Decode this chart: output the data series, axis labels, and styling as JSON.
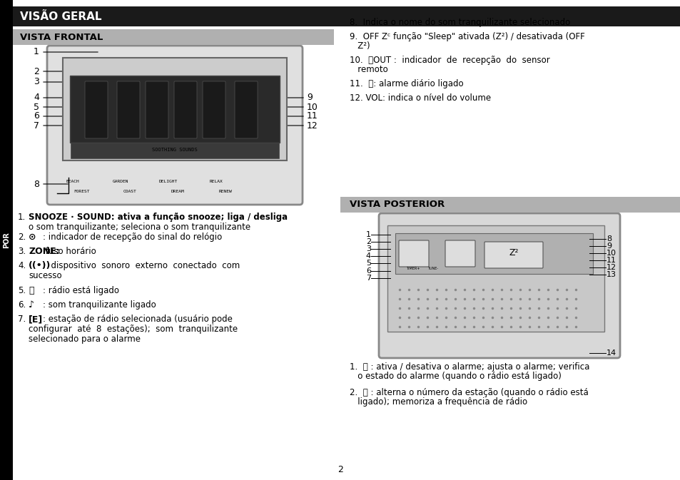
{
  "page_bg": "#ffffff",
  "left_tab_bg": "#000000",
  "left_tab_text": "POR",
  "left_tab_color": "#ffffff",
  "header1_bg": "#1a1a1a",
  "header1_text": "VISÃO GERAL",
  "header1_color": "#ffffff",
  "header2_bg": "#b0b0b0",
  "header2_text": "VISTA FRONTAL",
  "header2_color": "#000000",
  "header3_bg": "#b0b0b0",
  "header3_text": "VISTA POSTERIOR",
  "header3_color": "#000000",
  "right_items": [
    "8.   Indica o nome do som tranquilizante selecionado",
    "9.   OFF Zᶜ função “Sleep” ativada (Z²) / desativada (OFF\n     Z²)",
    "10.       : indicador de recepção do sensor\n     remoto",
    "11.    : alarme diário ligado",
    "12. VOL: indica o nível do volume"
  ],
  "left_items_text": [
    "1.  SNOOZE · SOUND: ativa a função snooze; liga / desliga\n    o som tranquilizante; seleciona o som tranquilizante",
    "2.    : indicador de recepção do sinal do relógio",
    "3.  ZONE: fuso horário",
    "4.    :  dispositivo  sonoro  externo  conectado  com\n    sucesso",
    "5.    : rádio está ligado",
    "6.    : som tranquilizante ligado",
    "7.    : estação de rádio selecionada (usuário pode\n    configurar  até  8  estações);  som  tranquilizante\n    selecionado para o alarme"
  ],
  "bottom_right_items": [
    "1.    : ativa / desativa o alarme; ajusta o alarme; verifica\n   o estado do alarme (quando o rádio está ligado)",
    "2.    : alterna o número da estação (quando o rádio está\n   ligado); memoriza a frequência de rádio"
  ],
  "page_number": "2"
}
